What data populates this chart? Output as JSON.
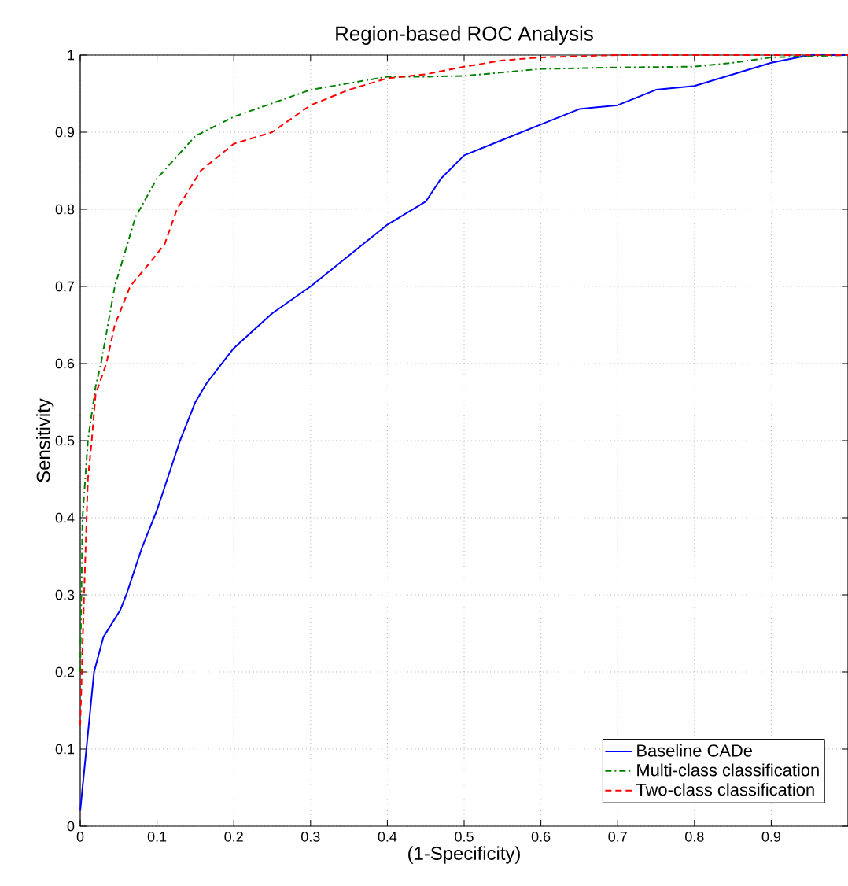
{
  "chart_data": {
    "type": "line",
    "title": "Region-based ROC Analysis",
    "xlabel": "(1-Specificity)",
    "ylabel": "Sensitivity",
    "xlim": [
      0,
      1
    ],
    "ylim": [
      0,
      1
    ],
    "xticks": [
      0,
      0.1,
      0.2,
      0.3,
      0.4,
      0.5,
      0.6,
      0.7,
      0.8,
      0.9
    ],
    "yticks": [
      0,
      0.1,
      0.2,
      0.3,
      0.4,
      0.5,
      0.6,
      0.7,
      0.8,
      0.9,
      1
    ],
    "grid": true,
    "legend": "bottom right",
    "marker": "none",
    "series": [
      {
        "name": "Baseline CADe",
        "color": "#0000ff",
        "line_style": "solid",
        "x": [
          0,
          0.018,
          0.03,
          0.052,
          0.06,
          0.08,
          0.1,
          0.13,
          0.15,
          0.165,
          0.2,
          0.25,
          0.3,
          0.35,
          0.4,
          0.45,
          0.47,
          0.5,
          0.55,
          0.6,
          0.65,
          0.7,
          0.75,
          0.8,
          0.85,
          0.9,
          0.95,
          1
        ],
        "values": [
          0.02,
          0.2,
          0.245,
          0.28,
          0.3,
          0.36,
          0.41,
          0.5,
          0.55,
          0.575,
          0.62,
          0.665,
          0.7,
          0.74,
          0.78,
          0.81,
          0.84,
          0.87,
          0.89,
          0.91,
          0.93,
          0.935,
          0.955,
          0.96,
          0.975,
          0.99,
          1,
          1
        ]
      },
      {
        "name": "Multi-class classification",
        "color": "#008000",
        "line_style": "dashdot",
        "x": [
          0,
          0.003,
          0.01,
          0.02,
          0.027,
          0.045,
          0.072,
          0.1,
          0.15,
          0.2,
          0.3,
          0.4,
          0.45,
          0.5,
          0.6,
          0.7,
          0.8,
          0.85,
          0.9,
          1
        ],
        "values": [
          0.2,
          0.4,
          0.5,
          0.57,
          0.6,
          0.7,
          0.79,
          0.84,
          0.895,
          0.92,
          0.955,
          0.972,
          0.972,
          0.973,
          0.982,
          0.984,
          0.985,
          0.99,
          0.997,
          1
        ]
      },
      {
        "name": "Two-class classification",
        "color": "#ff0000",
        "line_style": "dashed",
        "x": [
          0,
          0.005,
          0.01,
          0.015,
          0.02,
          0.034,
          0.045,
          0.065,
          0.09,
          0.11,
          0.126,
          0.157,
          0.2,
          0.25,
          0.3,
          0.35,
          0.4,
          0.45,
          0.5,
          0.55,
          0.6,
          0.7,
          1
        ],
        "values": [
          0.13,
          0.3,
          0.45,
          0.5,
          0.56,
          0.6,
          0.65,
          0.7,
          0.73,
          0.755,
          0.8,
          0.85,
          0.885,
          0.9,
          0.935,
          0.955,
          0.97,
          0.975,
          0.985,
          0.993,
          0.997,
          1,
          1
        ]
      }
    ]
  }
}
